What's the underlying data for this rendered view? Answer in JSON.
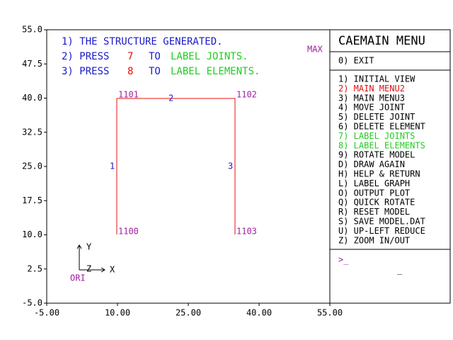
{
  "plot": {
    "y_tick_labels": [
      "55.0",
      "47.5",
      "40.0",
      "32.5",
      "25.0",
      "17.5",
      "10.0",
      "2.5",
      "-5.0"
    ],
    "x_tick_labels": [
      "-5.00",
      "10.00",
      "25.00",
      "40.00",
      "55.00"
    ],
    "instructions": [
      [
        "1) THE STRUCTURE GENERATED."
      ],
      [
        "2) PRESS",
        "7",
        "TO",
        "LABEL JOINTS."
      ],
      [
        "3) PRESS",
        "8",
        "TO",
        "LABEL ELEMENTS."
      ]
    ],
    "max_label": "MAX",
    "joints": [
      "1101",
      "1102",
      "1100",
      "1103"
    ],
    "elements": [
      "2",
      "1",
      "3"
    ],
    "origin": {
      "y": "Y",
      "x": "X",
      "z": "Z",
      "label": "ORI"
    }
  },
  "menu": {
    "title": "CAEMAIN MENU",
    "exit": "0) EXIT",
    "items": [
      "1) INITIAL VIEW",
      "2) MAIN MENU2",
      "3) MAIN MENU3",
      "4) MOVE JOINT",
      "5) DELETE JOINT",
      "6) DELETE ELEMENT",
      "7) LABEL JOINTS",
      "8) LABEL ELEMENTS",
      "9) ROTATE MODEL",
      "D) DRAW AGAIN",
      "H) HELP & RETURN",
      "L) LABEL GRAPH",
      "O) OUTPUT PLOT",
      "Q) QUICK ROTATE",
      "R) RESET MODEL",
      "S) SAVE MODEL.DAT",
      "U) UP-LEFT REDUCE",
      "Z) ZOOM IN/OUT"
    ],
    "prompt": ">_",
    "cursor": "_"
  }
}
